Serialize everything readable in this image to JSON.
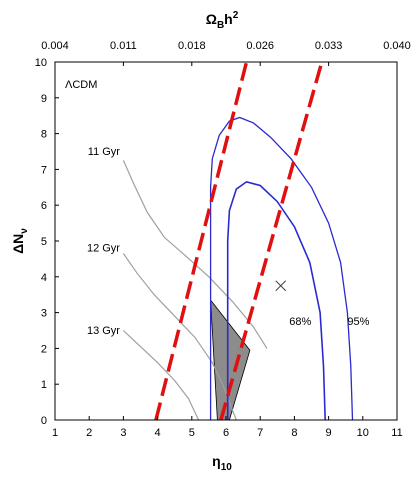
{
  "chart_data": {
    "type": "line",
    "model_label": "ΛCDM",
    "x_axis": {
      "label_main": "η",
      "label_sub": "10",
      "range": [
        1,
        11
      ],
      "ticks": [
        1,
        2,
        3,
        4,
        5,
        6,
        7,
        8,
        9,
        10,
        11
      ]
    },
    "y_axis": {
      "label_main": "ΔN",
      "label_sub": "ν",
      "range": [
        0,
        10
      ],
      "ticks": [
        0,
        1,
        2,
        3,
        4,
        5,
        6,
        7,
        8,
        9,
        10
      ]
    },
    "top_axis": {
      "label_main": "Ω",
      "label_sub": "B",
      "label_tail": "h",
      "label_sup": "2",
      "tick_labels": [
        "0.004",
        "0.011",
        "0.018",
        "0.026",
        "0.033",
        "0.040"
      ],
      "tick_eta": [
        1,
        3,
        5,
        7,
        9,
        11
      ]
    },
    "grid": false,
    "age_curves": [
      {
        "name": "11 Gyr",
        "points": [
          [
            3.0,
            7.25
          ],
          [
            3.3,
            6.6
          ],
          [
            3.7,
            5.8
          ],
          [
            4.2,
            5.1
          ],
          [
            4.8,
            4.6
          ],
          [
            5.5,
            4.0
          ],
          [
            6.2,
            3.3
          ],
          [
            6.8,
            2.6
          ],
          [
            7.2,
            2.0
          ]
        ]
      },
      {
        "name": "12 Gyr",
        "points": [
          [
            3.0,
            4.65
          ],
          [
            3.4,
            4.1
          ],
          [
            3.9,
            3.5
          ],
          [
            4.5,
            2.9
          ],
          [
            5.1,
            2.3
          ],
          [
            5.6,
            1.6
          ],
          [
            5.9,
            1.0
          ],
          [
            6.1,
            0.5
          ],
          [
            6.3,
            0.0
          ]
        ]
      },
      {
        "name": "13 Gyr",
        "points": [
          [
            3.0,
            2.5
          ],
          [
            3.5,
            2.05
          ],
          [
            4.0,
            1.6
          ],
          [
            4.5,
            1.1
          ],
          [
            4.9,
            0.6
          ],
          [
            5.2,
            0.0
          ]
        ]
      }
    ],
    "cl_95": {
      "name": "95%",
      "points": [
        [
          5.55,
          0.0
        ],
        [
          5.55,
          6.5
        ],
        [
          5.6,
          7.3
        ],
        [
          5.8,
          7.95
        ],
        [
          6.1,
          8.35
        ],
        [
          6.4,
          8.45
        ],
        [
          6.8,
          8.3
        ],
        [
          7.3,
          7.9
        ],
        [
          7.9,
          7.3
        ],
        [
          8.5,
          6.5
        ],
        [
          9.0,
          5.5
        ],
        [
          9.35,
          4.4
        ],
        [
          9.55,
          3.0
        ],
        [
          9.65,
          1.5
        ],
        [
          9.7,
          0.0
        ]
      ]
    },
    "cl_68": {
      "name": "68%",
      "points": [
        [
          6.05,
          0.0
        ],
        [
          6.05,
          5.0
        ],
        [
          6.1,
          5.85
        ],
        [
          6.3,
          6.45
        ],
        [
          6.6,
          6.65
        ],
        [
          7.0,
          6.55
        ],
        [
          7.5,
          6.1
        ],
        [
          8.0,
          5.4
        ],
        [
          8.45,
          4.4
        ],
        [
          8.75,
          3.0
        ],
        [
          8.85,
          1.5
        ],
        [
          8.9,
          0.0
        ]
      ]
    },
    "bbn_bounds": [
      {
        "points": [
          [
            3.95,
            0.0
          ],
          [
            6.6,
            10.0
          ]
        ]
      },
      {
        "points": [
          [
            5.85,
            0.0
          ],
          [
            8.8,
            10.0
          ]
        ]
      }
    ],
    "allowed_region": {
      "points": [
        [
          5.55,
          3.35
        ],
        [
          6.7,
          1.95
        ],
        [
          6.1,
          0.0
        ],
        [
          5.75,
          0.0
        ]
      ]
    },
    "best_fit": [
      7.6,
      3.75
    ],
    "annotations": {
      "label_68": {
        "text": "68%",
        "at": [
          7.85,
          2.65
        ]
      },
      "label_95": {
        "text": "95%",
        "at": [
          9.55,
          2.65
        ]
      },
      "age_11_label": {
        "text": "11 Gyr",
        "at": [
          2.9,
          7.4
        ]
      },
      "age_12_label": {
        "text": "12 Gyr",
        "at": [
          2.9,
          4.7
        ]
      },
      "age_13_label": {
        "text": "13 Gyr",
        "at": [
          2.9,
          2.4
        ]
      }
    },
    "colors": {
      "age_curve": "#a0a0a0",
      "contour": "#2a2ad0",
      "bbn": "#e01010",
      "allowed": "#8c8c8c",
      "axis": "#000000"
    }
  }
}
